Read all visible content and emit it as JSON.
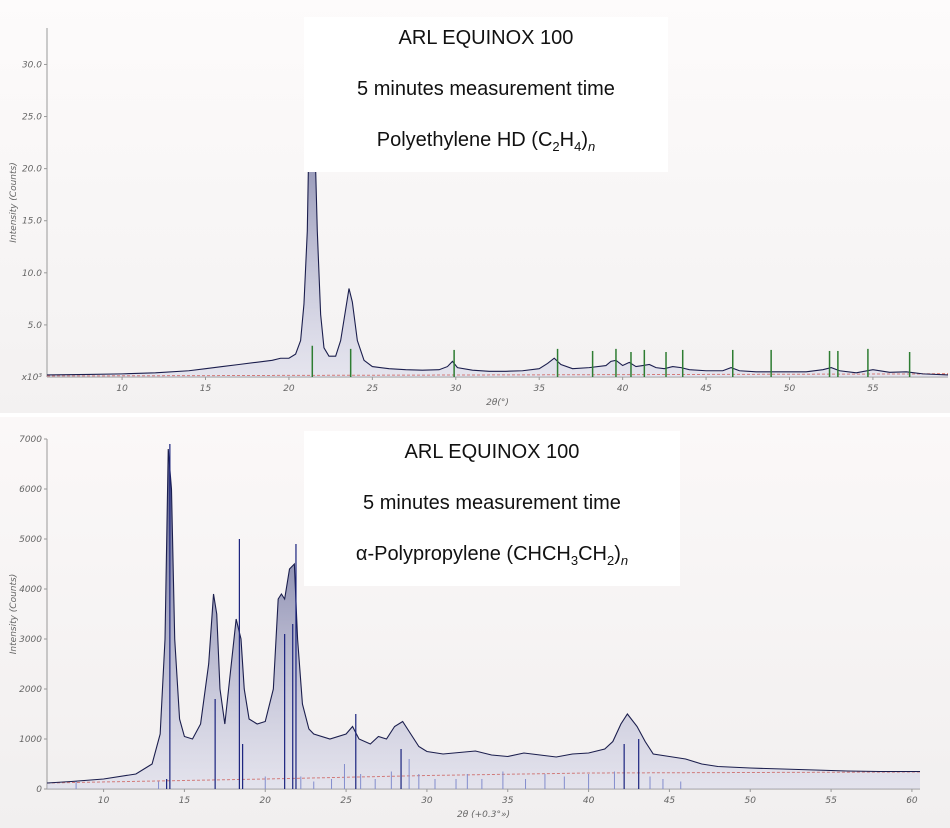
{
  "chart_data": [
    {
      "type": "line",
      "title": "ARL EQUINOX 100",
      "subtitle": "5 minutes measurement time",
      "sample_prefix": "Polyethylene HD (C",
      "sample_sub1": "2",
      "sample_mid": "H",
      "sample_sub2": "4",
      "sample_close": ")",
      "sample_sub3": "n",
      "xlabel": "2θ(°)",
      "ylabel": "Intensity (Counts)",
      "y_multiplier": "x10³",
      "xlim": [
        5.5,
        59.5
      ],
      "ylim": [
        0,
        33.5
      ],
      "x_ticks": [
        "10",
        "15",
        "20",
        "25",
        "30",
        "35",
        "40",
        "45",
        "50",
        "55"
      ],
      "y_ticks": [
        "5.0",
        "10.0",
        "15.0",
        "20.0",
        "25.0",
        "30.0"
      ],
      "grid": false,
      "series": [
        {
          "x": [
            5.5,
            8,
            10,
            12,
            14,
            15,
            16,
            17,
            18,
            19,
            19.5,
            20,
            20.4,
            20.7,
            20.9,
            21.1,
            21.3,
            21.5,
            21.7,
            21.9,
            22.1,
            22.4,
            22.8,
            23.1,
            23.4,
            23.6,
            23.8,
            24.1,
            24.5,
            25,
            26,
            27,
            28,
            29,
            29.5,
            29.8,
            30.1,
            31,
            32,
            33,
            34,
            35,
            35.5,
            35.9,
            36.3,
            37,
            38,
            39,
            39.3,
            39.6,
            40,
            40.4,
            40.8,
            41.2,
            41.6,
            42,
            42.5,
            43,
            43.5,
            44,
            45,
            46,
            46.5,
            47,
            48,
            50,
            51,
            52,
            52.5,
            53,
            54,
            55,
            56,
            57,
            58,
            59.5
          ],
          "y": [
            0.2,
            0.25,
            0.3,
            0.4,
            0.6,
            0.8,
            1.0,
            1.2,
            1.4,
            1.6,
            1.8,
            1.8,
            2.2,
            3.5,
            7,
            14,
            32.5,
            26,
            14,
            6,
            2.8,
            2.0,
            2.0,
            3.5,
            6.5,
            8.5,
            7.2,
            3.5,
            1.6,
            1.0,
            0.8,
            0.7,
            0.65,
            0.7,
            1.0,
            1.5,
            0.9,
            0.65,
            0.55,
            0.55,
            0.6,
            0.8,
            1.3,
            1.8,
            1.2,
            0.8,
            0.9,
            1.1,
            1.5,
            1.6,
            1.1,
            1.4,
            1.0,
            1.1,
            1.2,
            0.9,
            0.8,
            1.0,
            0.9,
            0.7,
            0.6,
            0.6,
            0.9,
            0.6,
            0.5,
            0.5,
            0.5,
            0.7,
            0.9,
            0.6,
            0.4,
            0.7,
            0.45,
            0.5,
            0.3,
            0.2
          ]
        }
      ],
      "background_line": {
        "x": [
          5.5,
          59.5
        ],
        "y": [
          0.1,
          0.3
        ]
      },
      "reference_peaks": {
        "color": "#2e7d32",
        "x": [
          21.4,
          23.7,
          29.9,
          36.1,
          38.2,
          39.6,
          40.5,
          41.3,
          42.6,
          43.6,
          46.6,
          48.9,
          52.4,
          52.9,
          54.7,
          57.2
        ],
        "y": [
          3.0,
          2.7,
          2.6,
          2.7,
          2.5,
          2.7,
          2.4,
          2.6,
          2.4,
          2.6,
          2.6,
          2.6,
          2.5,
          2.5,
          2.7,
          2.4
        ]
      }
    },
    {
      "type": "line",
      "title": "ARL EQUINOX 100",
      "subtitle": "5 minutes measurement time",
      "sample_prefix": "α-Polypropylene (CHCH",
      "sample_sub1": "3",
      "sample_mid": "CH",
      "sample_sub2": "2",
      "sample_close": ")",
      "sample_sub3": "n",
      "xlabel": "2θ (+0.3°»)",
      "ylabel": "Intensity (Counts)",
      "xlim": [
        6.5,
        60.5
      ],
      "ylim": [
        0,
        7000
      ],
      "x_ticks": [
        "10",
        "15",
        "20",
        "25",
        "30",
        "35",
        "40",
        "45",
        "50",
        "55",
        "60"
      ],
      "y_ticks": [
        "0",
        "1000",
        "2000",
        "3000",
        "4000",
        "5000",
        "6000",
        "7000"
      ],
      "grid": false,
      "series": [
        {
          "x": [
            6.5,
            8,
            10,
            12,
            13,
            13.5,
            13.8,
            14,
            14.2,
            14.4,
            14.7,
            15,
            15.5,
            16,
            16.5,
            16.8,
            17,
            17.2,
            17.5,
            17.8,
            18.2,
            18.5,
            18.7,
            19,
            19.5,
            20,
            20.5,
            20.8,
            21,
            21.2,
            21.5,
            21.8,
            22,
            22.3,
            22.7,
            23,
            24,
            25,
            25.4,
            25.8,
            26.5,
            27,
            27.5,
            28,
            28.5,
            29,
            29.5,
            30,
            31,
            32,
            33,
            34,
            35,
            36,
            37,
            38,
            39,
            40,
            41,
            41.5,
            42,
            42.4,
            43,
            43.5,
            44,
            45,
            46,
            47,
            48,
            50,
            52,
            54,
            56,
            58,
            60.5
          ],
          "y": [
            120,
            150,
            200,
            300,
            500,
            1100,
            3000,
            6800,
            6000,
            3000,
            1400,
            1050,
            1000,
            1300,
            2500,
            3900,
            3500,
            2000,
            1300,
            2200,
            3400,
            3000,
            2000,
            1400,
            1300,
            1350,
            2000,
            3800,
            3900,
            3800,
            4400,
            4500,
            3000,
            1700,
            1200,
            1100,
            1000,
            1100,
            1250,
            1000,
            900,
            1050,
            1000,
            1250,
            1350,
            1100,
            850,
            750,
            700,
            730,
            760,
            680,
            650,
            720,
            680,
            640,
            700,
            720,
            800,
            950,
            1300,
            1500,
            1250,
            950,
            700,
            650,
            600,
            500,
            450,
            420,
            400,
            380,
            360,
            350,
            350
          ]
        }
      ],
      "background_line": {
        "x": [
          6.5,
          20,
          30,
          40,
          50,
          60.5
        ],
        "y": [
          120,
          200,
          270,
          320,
          330,
          340
        ]
      },
      "reference_peaks": {
        "color": "#1a237e",
        "x": [
          13.9,
          14.1,
          16.9,
          18.4,
          18.6,
          21.2,
          21.7,
          21.9,
          25.6,
          28.4,
          42.2,
          43.1
        ],
        "y": [
          200,
          6900,
          1800,
          5000,
          900,
          3100,
          3300,
          4900,
          1500,
          800,
          900,
          1000
        ]
      },
      "reference_peaks_minor": {
        "color": "#5c6bc0",
        "x": [
          8.3,
          13.4,
          20,
          22.2,
          23,
          24.1,
          24.9,
          25.9,
          26.8,
          27.8,
          28.9,
          29.5,
          30.5,
          31.8,
          32.5,
          33.4,
          34.7,
          36.1,
          37.3,
          38.5,
          40,
          41.6,
          43.8,
          44.6,
          45.7
        ],
        "y": [
          150,
          150,
          250,
          250,
          150,
          200,
          500,
          300,
          200,
          350,
          600,
          300,
          200,
          200,
          300,
          200,
          350,
          200,
          300,
          250,
          300,
          350,
          250,
          200,
          150
        ]
      }
    }
  ]
}
